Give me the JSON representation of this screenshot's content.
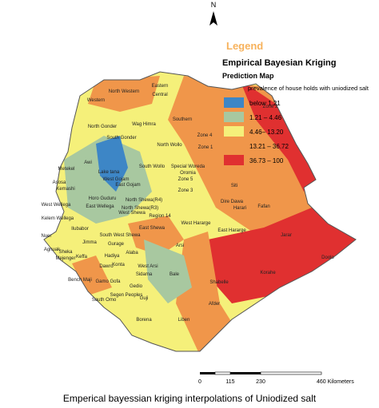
{
  "north": "N",
  "legend": {
    "heading": "Legend",
    "title": "Empirical Bayesian Kriging",
    "subtitle": "Prediction Map",
    "variable": "prevalence of house holds with uniodized salt",
    "items": [
      "below 1.21",
      "1.21 – 4.46",
      "4.46– 13.20",
      "13.21 – 36.72",
      "36.73 – 100"
    ]
  },
  "scale": [
    "0",
    "115",
    "230",
    "460 Kilometers"
  ],
  "caption": "Emperical bayessian kriging interpolations of Uniodized salt",
  "regions": [
    "Eastern",
    "North Western",
    "Central",
    "Western",
    "Zone 2",
    "North Gonder",
    "Wag Himra",
    "Southern",
    "Zone 4",
    "South Gonder",
    "North Wollo",
    "Zone 1",
    "Lake tana",
    "South Wollo",
    "Special Woreda",
    "Oromia",
    "West Gojam",
    "Zone 5",
    "Awi",
    "Metekel",
    "Kemashi",
    "Horo Guduru",
    "East Gojam",
    "North Shewa(R4)",
    "Zone 3",
    "Siti",
    "Asosa",
    "West Wellega",
    "East Wellega",
    "North Shewa(R3)",
    "Dire Dawa",
    "Harari",
    "Fafan",
    "Kelem Wellega",
    "West Shewa",
    "Region 14",
    "East Shewa",
    "West Hararge",
    "East Hararge",
    "Jarar",
    "Ilubabor",
    "South West Shewa",
    "Arsi",
    "Nuer",
    "Agnuak",
    "Jimma",
    "Gurage",
    "Sheka",
    "Mejenger",
    "Keffa",
    "Hadiya",
    "Alaba",
    "Doolo",
    "Korahe",
    "Bench Maji",
    "Dawro",
    "Konta",
    "West Arsi",
    "Bale",
    "Shabelle",
    "Gamo Gofa",
    "Sidama",
    "Gedio",
    "South Omo",
    "Segen Peoples",
    "Guji",
    "Afder",
    "Borena",
    "Liben"
  ]
}
